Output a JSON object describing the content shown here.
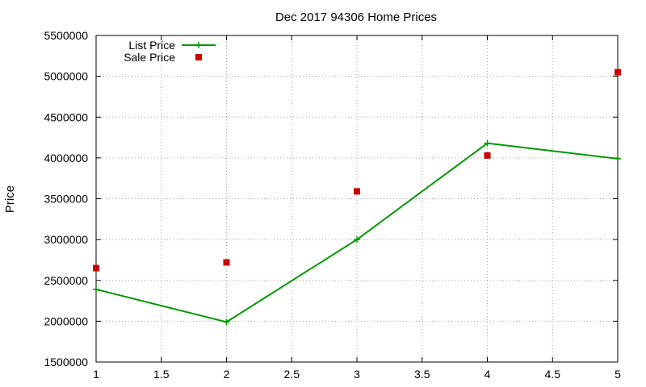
{
  "chart_data": {
    "type": "line",
    "title": "Dec 2017 94306 Home Prices",
    "xlabel": "",
    "ylabel": "Price",
    "xlim": [
      1,
      5
    ],
    "ylim": [
      1500000,
      5500000
    ],
    "x_ticks": [
      "1",
      "1.5",
      "2",
      "2.5",
      "3",
      "3.5",
      "4",
      "4.5",
      "5"
    ],
    "y_ticks": [
      "1500000",
      "2000000",
      "2500000",
      "3000000",
      "3500000",
      "4000000",
      "4500000",
      "5000000",
      "5500000"
    ],
    "grid": true,
    "legend": "top-left",
    "series": [
      {
        "name": "List Price",
        "type": "line",
        "marker": "plus",
        "color": "#009900",
        "x": [
          1,
          2,
          3,
          4,
          5
        ],
        "values": [
          2390000,
          1990000,
          3000000,
          4180000,
          3990000
        ]
      },
      {
        "name": "Sale Price",
        "type": "scatter",
        "marker": "square",
        "color": "#cc0000",
        "x": [
          1,
          2,
          3,
          4,
          5
        ],
        "values": [
          2650000,
          2720000,
          3590000,
          4030000,
          5050000
        ]
      }
    ]
  }
}
